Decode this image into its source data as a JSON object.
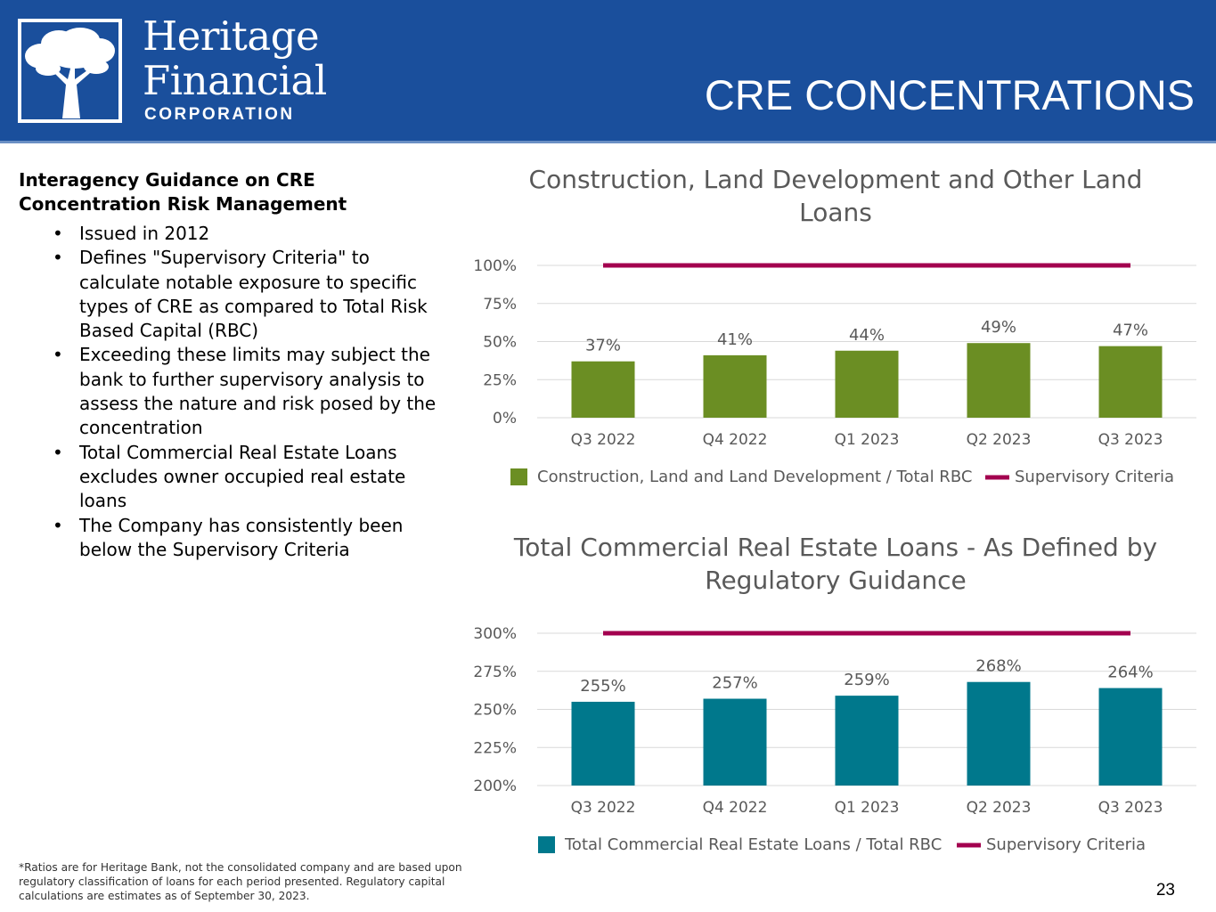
{
  "brand": {
    "name_line1": "Heritage",
    "name_line2": "Financial",
    "corporation": "CORPORATION"
  },
  "page": {
    "title": "CRE CONCENTRATIONS",
    "number": "23"
  },
  "sidebar": {
    "heading": "Interagency Guidance on CRE Concentration Risk Management",
    "bullets": [
      "Issued in 2012",
      "Defines \"Supervisory Criteria\" to calculate notable exposure to specific types of CRE as compared to Total Risk Based Capital (RBC)",
      "Exceeding these limits may subject the bank to further supervisory analysis to assess the nature and risk posed by the concentration",
      "Total Commercial Real Estate Loans excludes owner occupied real estate loans",
      "The Company has consistently been below the Supervisory Criteria"
    ]
  },
  "footnote": "*Ratios are for Heritage Bank, not the consolidated company and are based upon regulatory classification of loans for each period presented.  Regulatory capital calculations are estimates as of September 30, 2023.",
  "colors": {
    "header": "#1a4f9c",
    "green": "#6b8e23",
    "teal": "#00788c",
    "criteria": "#a3004f",
    "grid": "#d9d9d9",
    "title": "#595959"
  },
  "chart_data": [
    {
      "type": "bar",
      "title": [
        "Construction, Land Development and Other Land",
        "Loans"
      ],
      "categories": [
        "Q3 2022",
        "Q4 2022",
        "Q1 2023",
        "Q2 2023",
        "Q3 2023"
      ],
      "series": [
        {
          "name": "Construction, Land and Land Development / Total RBC",
          "kind": "bar",
          "values": [
            37,
            41,
            44,
            49,
            47
          ],
          "labels": [
            "37%",
            "41%",
            "44%",
            "49%",
            "47%"
          ]
        },
        {
          "name": "Supervisory Criteria",
          "kind": "line",
          "values": [
            100,
            100,
            100,
            100,
            100
          ]
        }
      ],
      "ylim": [
        0,
        100
      ],
      "yticks": [
        0,
        25,
        50,
        75,
        100
      ],
      "yticklabels": [
        "0%",
        "25%",
        "50%",
        "75%",
        "100%"
      ],
      "legend": [
        "Construction, Land and Land Development / Total RBC",
        "Supervisory Criteria"
      ]
    },
    {
      "type": "bar",
      "title": [
        "Total Commercial Real Estate Loans - As Defined by",
        "Regulatory Guidance"
      ],
      "categories": [
        "Q3 2022",
        "Q4 2022",
        "Q1 2023",
        "Q2 2023",
        "Q3 2023"
      ],
      "series": [
        {
          "name": "Total Commercial Real Estate Loans / Total RBC",
          "kind": "bar",
          "values": [
            255,
            257,
            259,
            268,
            264
          ],
          "labels": [
            "255%",
            "257%",
            "259%",
            "268%",
            "264%"
          ]
        },
        {
          "name": "Supervisory Criteria",
          "kind": "line",
          "values": [
            300,
            300,
            300,
            300,
            300
          ]
        }
      ],
      "ylim": [
        200,
        300
      ],
      "yticks": [
        200,
        225,
        250,
        275,
        300
      ],
      "yticklabels": [
        "200%",
        "225%",
        "250%",
        "275%",
        "300%"
      ],
      "legend": [
        "Total Commercial Real Estate Loans / Total RBC",
        "Supervisory Criteria"
      ]
    }
  ]
}
